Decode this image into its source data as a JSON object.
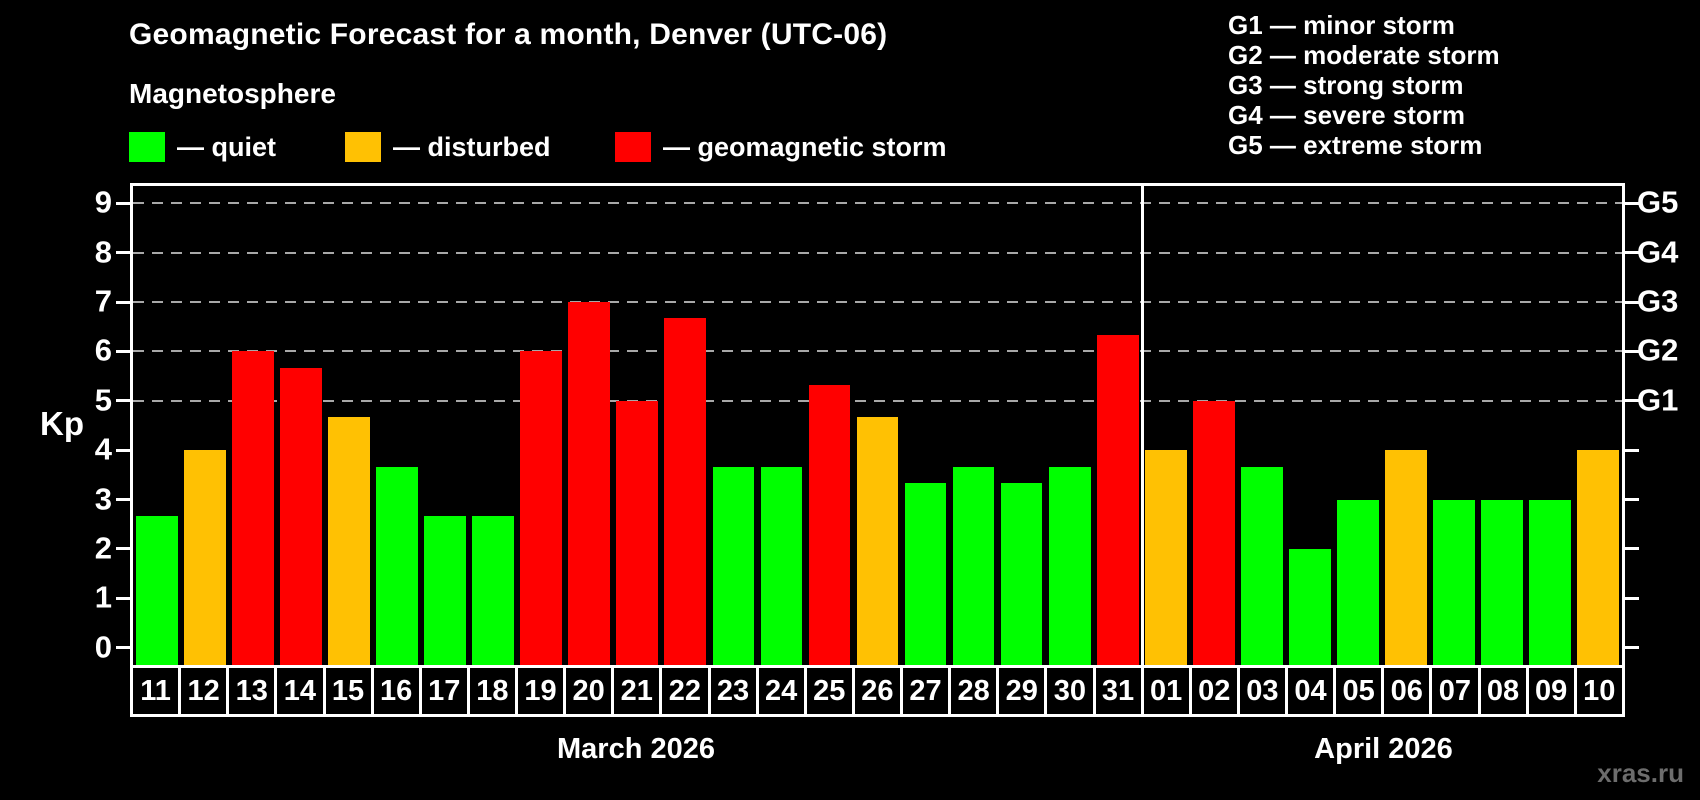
{
  "header": {
    "title": "Geomagnetic Forecast for a month, Denver (UTC-06)",
    "subtitle": "Magnetosphere"
  },
  "legend": {
    "items": [
      {
        "key": "quiet",
        "label": "— quiet",
        "color": "#00ff00"
      },
      {
        "key": "disturbed",
        "label": "— disturbed",
        "color": "#ffc103"
      },
      {
        "key": "storm",
        "label": "— geomagnetic storm",
        "color": "#ff0000"
      }
    ]
  },
  "g_legend": {
    "items": [
      "G1 — minor storm",
      "G2 — moderate storm",
      "G3 — strong storm",
      "G4 — severe storm",
      "G5 — extreme storm"
    ]
  },
  "axis": {
    "kp_label": "Kp",
    "left_ticks": [
      0,
      1,
      2,
      3,
      4,
      5,
      6,
      7,
      8,
      9
    ],
    "right_labels": [
      {
        "label": "G1",
        "kp": 5
      },
      {
        "label": "G2",
        "kp": 6
      },
      {
        "label": "G3",
        "kp": 7
      },
      {
        "label": "G4",
        "kp": 8
      },
      {
        "label": "G5",
        "kp": 9
      }
    ]
  },
  "months": [
    {
      "label": "March 2026",
      "days": 21
    },
    {
      "label": "April 2026",
      "days": 10
    }
  ],
  "watermark": "xras.ru",
  "chart_data": {
    "type": "bar",
    "title": "Geomagnetic Forecast for a month, Denver (UTC-06)",
    "xlabel": "",
    "ylabel": "Kp",
    "ylim": [
      0,
      9
    ],
    "y_ticks": [
      0,
      1,
      2,
      3,
      4,
      5,
      6,
      7,
      8,
      9
    ],
    "gridlines_kp": [
      5,
      6,
      7,
      8,
      9
    ],
    "legend_position": "top-left",
    "colors": {
      "quiet": "#00ff00",
      "disturbed": "#ffc103",
      "storm": "#ff0000"
    },
    "bars": [
      {
        "day": "11",
        "month": "March 2026",
        "kp": 2.67,
        "status": "quiet"
      },
      {
        "day": "12",
        "month": "March 2026",
        "kp": 4.0,
        "status": "disturbed"
      },
      {
        "day": "13",
        "month": "March 2026",
        "kp": 6.0,
        "status": "storm"
      },
      {
        "day": "14",
        "month": "March 2026",
        "kp": 5.67,
        "status": "storm"
      },
      {
        "day": "15",
        "month": "March 2026",
        "kp": 4.67,
        "status": "disturbed"
      },
      {
        "day": "16",
        "month": "March 2026",
        "kp": 3.67,
        "status": "quiet"
      },
      {
        "day": "17",
        "month": "March 2026",
        "kp": 2.67,
        "status": "quiet"
      },
      {
        "day": "18",
        "month": "March 2026",
        "kp": 2.67,
        "status": "quiet"
      },
      {
        "day": "19",
        "month": "March 2026",
        "kp": 6.0,
        "status": "storm"
      },
      {
        "day": "20",
        "month": "March 2026",
        "kp": 7.0,
        "status": "storm"
      },
      {
        "day": "21",
        "month": "March 2026",
        "kp": 5.0,
        "status": "storm"
      },
      {
        "day": "22",
        "month": "March 2026",
        "kp": 6.67,
        "status": "storm"
      },
      {
        "day": "23",
        "month": "March 2026",
        "kp": 3.67,
        "status": "quiet"
      },
      {
        "day": "24",
        "month": "March 2026",
        "kp": 3.67,
        "status": "quiet"
      },
      {
        "day": "25",
        "month": "March 2026",
        "kp": 5.33,
        "status": "storm"
      },
      {
        "day": "26",
        "month": "March 2026",
        "kp": 4.67,
        "status": "disturbed"
      },
      {
        "day": "27",
        "month": "March 2026",
        "kp": 3.33,
        "status": "quiet"
      },
      {
        "day": "28",
        "month": "March 2026",
        "kp": 3.67,
        "status": "quiet"
      },
      {
        "day": "29",
        "month": "March 2026",
        "kp": 3.33,
        "status": "quiet"
      },
      {
        "day": "30",
        "month": "March 2026",
        "kp": 3.67,
        "status": "quiet"
      },
      {
        "day": "31",
        "month": "March 2026",
        "kp": 6.33,
        "status": "storm"
      },
      {
        "day": "01",
        "month": "April 2026",
        "kp": 4.0,
        "status": "disturbed"
      },
      {
        "day": "02",
        "month": "April 2026",
        "kp": 5.0,
        "status": "storm"
      },
      {
        "day": "03",
        "month": "April 2026",
        "kp": 3.67,
        "status": "quiet"
      },
      {
        "day": "04",
        "month": "April 2026",
        "kp": 2.0,
        "status": "quiet"
      },
      {
        "day": "05",
        "month": "April 2026",
        "kp": 3.0,
        "status": "quiet"
      },
      {
        "day": "06",
        "month": "April 2026",
        "kp": 4.0,
        "status": "disturbed"
      },
      {
        "day": "07",
        "month": "April 2026",
        "kp": 3.0,
        "status": "quiet"
      },
      {
        "day": "08",
        "month": "April 2026",
        "kp": 3.0,
        "status": "quiet"
      },
      {
        "day": "09",
        "month": "April 2026",
        "kp": 3.0,
        "status": "quiet"
      },
      {
        "day": "10",
        "month": "April 2026",
        "kp": 4.0,
        "status": "disturbed"
      }
    ]
  }
}
